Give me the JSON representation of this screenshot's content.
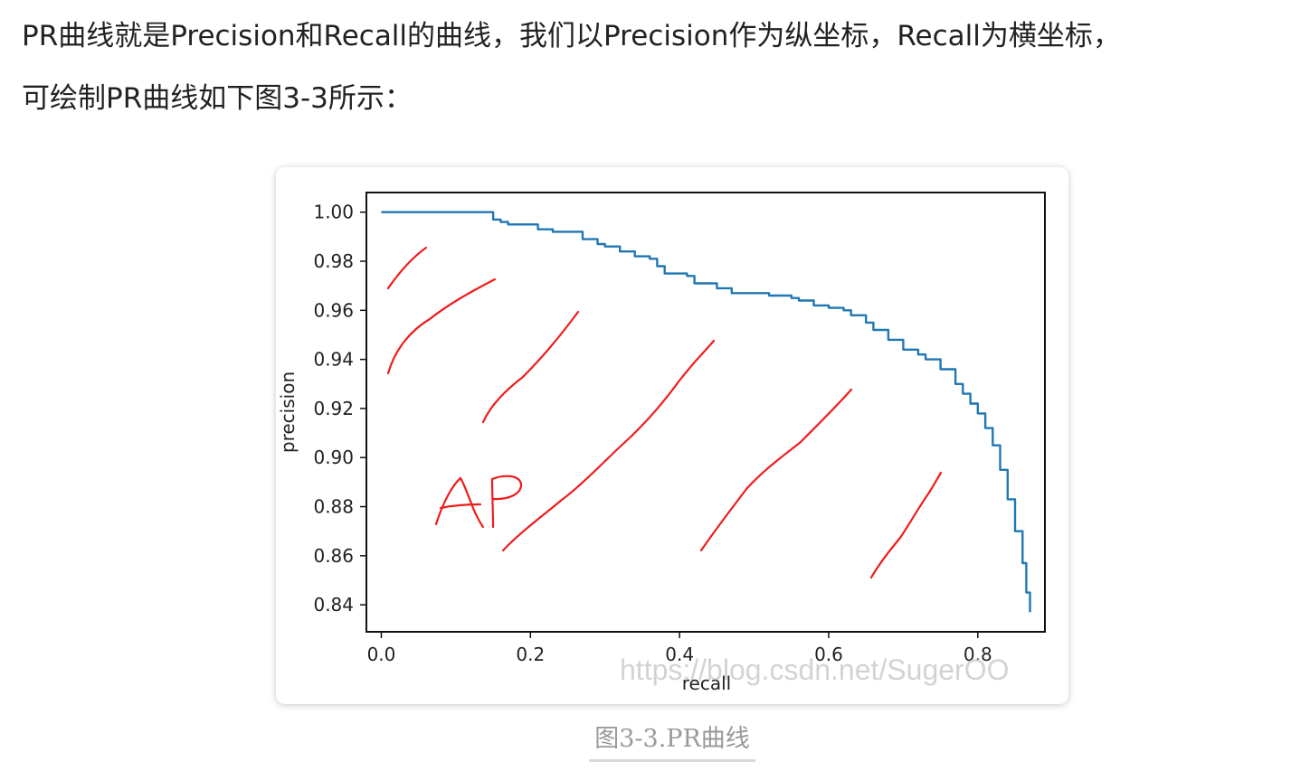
{
  "paragraph": {
    "line1": "PR曲线就是Precision和Recall的曲线，我们以Precision作为纵坐标，Recall为横坐标，",
    "line2": "可绘制PR曲线如下图3-3所示："
  },
  "figure": {
    "caption": "图3-3.PR曲线",
    "watermark": "https://blog.csdn.net/SugerOO",
    "annotation": "AP"
  },
  "chart_data": {
    "type": "line",
    "title": "",
    "xlabel": "recall",
    "ylabel": "precision",
    "xlim": [
      -0.02,
      0.89
    ],
    "ylim": [
      0.829,
      1.008
    ],
    "xticks": [
      "0.0",
      "0.2",
      "0.4",
      "0.6",
      "0.8"
    ],
    "xtick_values": [
      0.0,
      0.2,
      0.4,
      0.6,
      0.8
    ],
    "yticks": [
      "1.00",
      "0.98",
      "0.96",
      "0.94",
      "0.92",
      "0.90",
      "0.88",
      "0.86",
      "0.84"
    ],
    "ytick_values": [
      1.0,
      0.98,
      0.96,
      0.94,
      0.92,
      0.9,
      0.88,
      0.86,
      0.84
    ],
    "line_color": "#1f77b4",
    "annotation_color": "#ee1c1c",
    "grid": false,
    "series": [
      {
        "x": [
          0.0,
          0.15,
          0.15,
          0.16,
          0.17,
          0.17,
          0.19,
          0.21,
          0.21,
          0.23,
          0.23,
          0.26,
          0.27,
          0.29,
          0.3,
          0.32,
          0.34,
          0.36,
          0.37,
          0.38,
          0.38,
          0.41,
          0.42,
          0.45,
          0.47,
          0.49,
          0.52,
          0.55,
          0.56,
          0.58,
          0.6,
          0.62,
          0.63,
          0.65,
          0.66,
          0.68,
          0.7,
          0.72,
          0.73,
          0.75,
          0.77,
          0.78,
          0.79,
          0.8,
          0.81,
          0.82,
          0.83,
          0.84,
          0.85,
          0.86,
          0.865,
          0.87
        ],
        "y": [
          1.0,
          1.0,
          0.997,
          0.996,
          0.996,
          0.995,
          0.995,
          0.995,
          0.993,
          0.993,
          0.992,
          0.992,
          0.989,
          0.987,
          0.986,
          0.984,
          0.982,
          0.981,
          0.978,
          0.977,
          0.975,
          0.974,
          0.971,
          0.969,
          0.967,
          0.967,
          0.966,
          0.965,
          0.964,
          0.962,
          0.961,
          0.96,
          0.958,
          0.955,
          0.952,
          0.948,
          0.944,
          0.942,
          0.94,
          0.936,
          0.93,
          0.926,
          0.922,
          0.918,
          0.912,
          0.905,
          0.895,
          0.883,
          0.87,
          0.857,
          0.845,
          0.837
        ]
      }
    ]
  }
}
